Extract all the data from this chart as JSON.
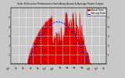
{
  "title": "Solar PV/Inverter Performance East Array Actual & Average Power Output",
  "bg_color": "#c8c8c8",
  "plot_bg_color": "#c8c8c8",
  "actual_color": "#dd0000",
  "average_color": "#0000dd",
  "grid_color": "#ffffff",
  "ylim": [
    0,
    6
  ],
  "xlim": [
    0,
    143
  ],
  "legend_labels": [
    "Actual Power",
    "Average Power"
  ],
  "legend_colors": [
    "#dd0000",
    "#0000dd"
  ]
}
